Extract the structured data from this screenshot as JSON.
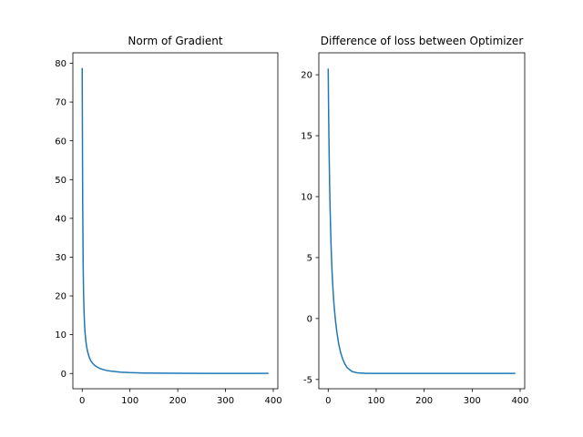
{
  "chart_data": [
    {
      "type": "line",
      "title": "Norm of Gradient",
      "xlabel": "",
      "ylabel": "",
      "xlim": [
        -19.5,
        409.5
      ],
      "ylim": [
        -3.94,
        82.7
      ],
      "xticks": [
        0,
        100,
        200,
        300,
        400
      ],
      "yticks": [
        0,
        10,
        20,
        30,
        40,
        50,
        60,
        70,
        80
      ],
      "grid": false,
      "color": "#1f77b4",
      "x": [
        0,
        1,
        2,
        3,
        4,
        5,
        6,
        8,
        10,
        12,
        15,
        18,
        22,
        26,
        30,
        35,
        40,
        50,
        60,
        80,
        100,
        130,
        160,
        200,
        250,
        300,
        350,
        390
      ],
      "y": [
        78.8,
        45.0,
        28.0,
        20.0,
        15.5,
        12.6,
        10.5,
        8.0,
        6.4,
        5.3,
        4.1,
        3.3,
        2.6,
        2.1,
        1.75,
        1.4,
        1.15,
        0.8,
        0.6,
        0.35,
        0.22,
        0.12,
        0.08,
        0.05,
        0.03,
        0.02,
        0.01,
        0.01
      ]
    },
    {
      "type": "line",
      "title": "Difference of loss between Optimizer",
      "xlabel": "",
      "ylabel": "",
      "xlim": [
        -19.5,
        409.5
      ],
      "ylim": [
        -5.76,
        21.8
      ],
      "xticks": [
        0,
        100,
        200,
        300,
        400
      ],
      "yticks": [
        -5,
        0,
        5,
        10,
        15,
        20
      ],
      "grid": false,
      "color": "#1f77b4",
      "x": [
        0,
        1,
        2,
        3,
        4,
        5,
        6,
        8,
        10,
        12,
        15,
        18,
        22,
        26,
        30,
        35,
        40,
        50,
        60,
        80,
        100,
        150,
        200,
        250,
        300,
        350,
        390
      ],
      "y": [
        20.5,
        16.5,
        13.5,
        11.0,
        9.0,
        7.4,
        6.0,
        3.9,
        2.4,
        1.2,
        -0.1,
        -1.1,
        -2.1,
        -2.8,
        -3.3,
        -3.75,
        -4.05,
        -4.35,
        -4.45,
        -4.5,
        -4.5,
        -4.5,
        -4.5,
        -4.5,
        -4.5,
        -4.5,
        -4.5
      ]
    }
  ]
}
